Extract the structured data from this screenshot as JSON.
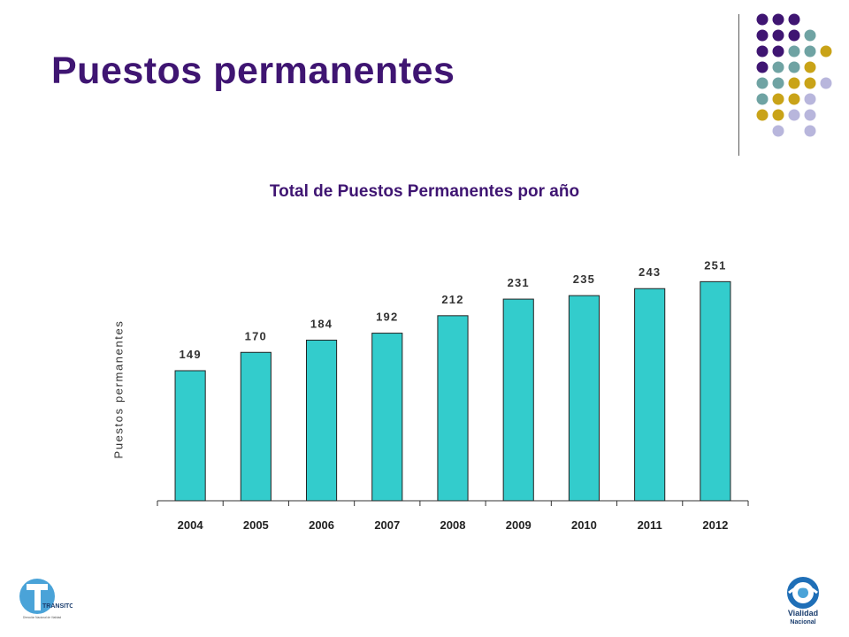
{
  "slide": {
    "title": "Puestos permanentes"
  },
  "colors": {
    "title": "#3f1572",
    "bar": "#33cccc",
    "dot_purple": "#3f1572",
    "dot_teal": "#6fa3a3",
    "dot_gold": "#c9a318",
    "dot_lavender": "#b8b6dc"
  },
  "chart_data": {
    "type": "bar",
    "title": "Total de Puestos Permanentes por año",
    "xlabel": "",
    "ylabel": "Puestos permanentes",
    "categories": [
      "2004",
      "2005",
      "2006",
      "2007",
      "2008",
      "2009",
      "2010",
      "2011",
      "2012"
    ],
    "values": [
      149,
      170,
      184,
      192,
      212,
      231,
      235,
      243,
      251
    ],
    "ylim": [
      0,
      300
    ],
    "grid": false,
    "data_labels": true,
    "legend": "none"
  },
  "logos": {
    "left": {
      "name": "transito-logo",
      "text": "TRANSITO",
      "subtext": "Dirección Nacional de Vialidad"
    },
    "right": {
      "name": "vialidad-nacional-logo",
      "text1": "Vialidad",
      "text2": "Nacional"
    }
  }
}
